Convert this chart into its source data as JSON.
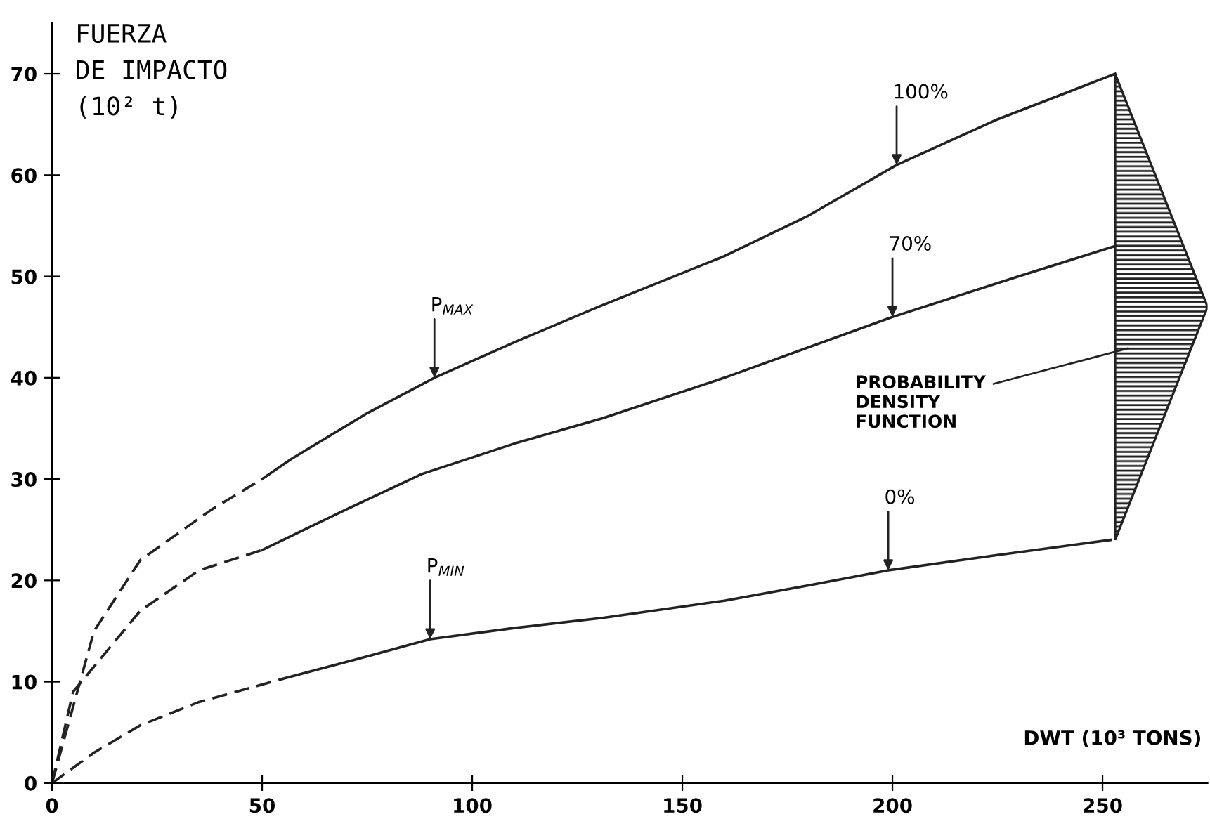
{
  "chart_data": {
    "type": "line",
    "ylabel": "FUERZA\nDE IMPACTO\n(10² t)",
    "xlabel": "DWT (10³ TONS)",
    "xlim": [
      0,
      275
    ],
    "xticks": [
      0,
      50,
      100,
      150,
      200,
      250
    ],
    "ylim": [
      0,
      75
    ],
    "yticks": [
      0,
      10,
      20,
      30,
      40,
      50,
      60,
      70
    ],
    "grid": false,
    "legend": false,
    "marker": "none",
    "series": [
      {
        "color": "#222222",
        "line_style": "dashed",
        "x": [
          0,
          10,
          21,
          38,
          50
        ],
        "values": [
          0,
          15,
          22,
          27,
          30
        ]
      },
      {
        "color": "#222222",
        "line_style": "solid",
        "x": [
          50,
          57,
          75,
          91,
          110,
          130,
          160,
          180,
          201,
          225,
          253
        ],
        "values": [
          30,
          32,
          36.5,
          40,
          43.5,
          47,
          52,
          56,
          61,
          65.5,
          70
        ]
      },
      {
        "color": "#222222",
        "line_style": "dashed",
        "x": [
          0,
          5,
          21,
          35,
          50
        ],
        "values": [
          0,
          9,
          17,
          21,
          23
        ]
      },
      {
        "color": "#222222",
        "line_style": "solid",
        "x": [
          50,
          70,
          88,
          110,
          131,
          160,
          200,
          230,
          253
        ],
        "values": [
          23,
          27,
          30.5,
          33.5,
          36,
          40,
          46,
          50,
          53
        ]
      },
      {
        "color": "#222222",
        "line_style": "dashed",
        "x": [
          0,
          10,
          21,
          35,
          49,
          55
        ],
        "values": [
          0,
          3,
          5.7,
          8,
          9.6,
          10.3
        ]
      },
      {
        "color": "#222222",
        "line_style": "solid",
        "x": [
          55,
          75,
          90,
          110,
          131,
          160,
          180,
          199,
          225,
          252
        ],
        "values": [
          10.3,
          12.5,
          14.2,
          15.3,
          16.3,
          18,
          19.5,
          21,
          22.5,
          24
        ]
      }
    ],
    "annotations": [
      {
        "text": "100%",
        "x": 201,
        "y": 61
      },
      {
        "text": "70%",
        "x": 200,
        "y": 46
      },
      {
        "text": "0%",
        "x": 199,
        "y": 21
      },
      {
        "text": "P$_{MAX}$",
        "x": 91,
        "y": 40
      },
      {
        "text": "P$_{MIN}$",
        "x": 90,
        "y": 14.2
      },
      "PROBABILITY\nDENSITY\nFUNCTION"
    ]
  }
}
